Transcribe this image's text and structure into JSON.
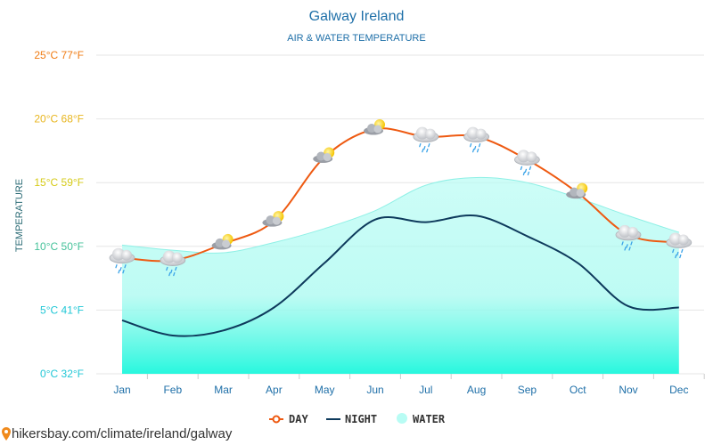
{
  "colors": {
    "day": "#ee5a12",
    "night": "#0e3a5c",
    "water_top": "#b8fcf4",
    "water_bottom": "#28f7de",
    "water_line": "#8ff0e6",
    "grid": "#e6e6e6",
    "y_tick_colors": [
      "#22c7d6",
      "#22c7d6",
      "#45c29a",
      "#d6cb19",
      "#e8b620",
      "#f07c14"
    ]
  },
  "chart_data": {
    "type": "line",
    "title": "Galway Ireland",
    "subtitle": "AIR & WATER TEMPERATURE",
    "ylabel": "TEMPERATURE",
    "categories": [
      "Jan",
      "Feb",
      "Mar",
      "Apr",
      "May",
      "Jun",
      "Jul",
      "Aug",
      "Sep",
      "Oct",
      "Nov",
      "Dec"
    ],
    "ylim": [
      0,
      25
    ],
    "y_ticks": [
      {
        "value": 0,
        "label": "0°C 32°F"
      },
      {
        "value": 5,
        "label": "5°C 41°F"
      },
      {
        "value": 10,
        "label": "10°C 50°F"
      },
      {
        "value": 15,
        "label": "15°C 59°F"
      },
      {
        "value": 20,
        "label": "20°C 68°F"
      },
      {
        "value": 25,
        "label": "25°C 77°F"
      }
    ],
    "series": [
      {
        "name": "DAY",
        "kind": "line",
        "values": [
          9.1,
          8.9,
          10.2,
          12.0,
          17.0,
          19.2,
          18.6,
          18.6,
          16.8,
          14.2,
          10.9,
          10.3
        ]
      },
      {
        "name": "NIGHT",
        "kind": "line",
        "values": [
          4.2,
          3.0,
          3.4,
          5.2,
          8.7,
          12.1,
          11.9,
          12.4,
          10.8,
          8.7,
          5.3,
          5.2
        ]
      },
      {
        "name": "WATER",
        "kind": "area",
        "values": [
          10.1,
          9.7,
          9.5,
          10.3,
          11.4,
          12.8,
          14.8,
          15.4,
          15.0,
          13.8,
          12.4,
          11.1
        ]
      }
    ],
    "weather_icons": [
      "rain",
      "rain",
      "sun-cloud",
      "sun-cloud",
      "sun-cloud",
      "sun-cloud",
      "rain",
      "rain",
      "rain",
      "sun-cloud",
      "rain",
      "rain"
    ],
    "legend": [
      "DAY",
      "NIGHT",
      "WATER"
    ],
    "legend_position": "bottom-center"
  },
  "source": {
    "icon": "location-pin-icon",
    "text": "hikersbay.com/climate/ireland/galway"
  }
}
